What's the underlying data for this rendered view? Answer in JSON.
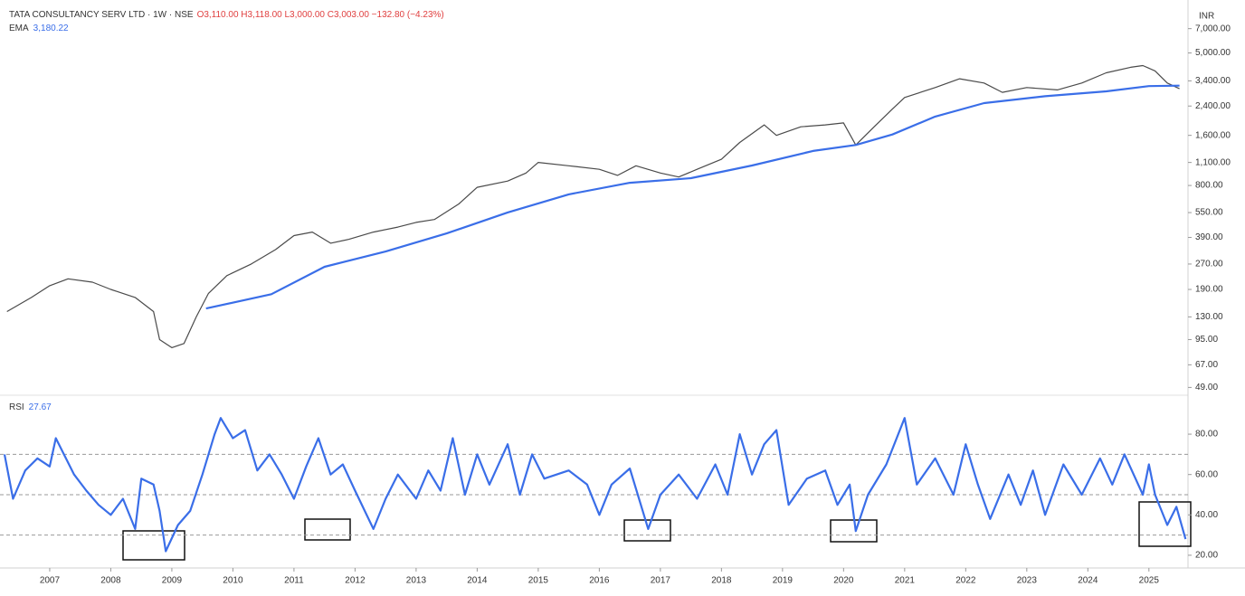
{
  "chart_data": [
    {
      "type": "line",
      "title": "TATA CONSULTANCY SERV LTD · 1W · NSE",
      "subtitle": "O3,110.00 H3,118.00 L3,000.00 C3,003.00 −132.80 (−4.23%)",
      "currency": "INR",
      "log_scale": true,
      "ylim": [
        44,
        10400
      ],
      "xlim": [
        2006.26,
        2025.64
      ],
      "yticks": [
        {
          "value": 7000,
          "label": "7,000.00"
        },
        {
          "value": 5000,
          "label": "5,000.00"
        },
        {
          "value": 3400,
          "label": "3,400.00"
        },
        {
          "value": 2400,
          "label": "2,400.00"
        },
        {
          "value": 1600,
          "label": "1,600.00"
        },
        {
          "value": 1100,
          "label": "1,100.00"
        },
        {
          "value": 800,
          "label": "800.00"
        },
        {
          "value": 550,
          "label": "550.00"
        },
        {
          "value": 390,
          "label": "390.00"
        },
        {
          "value": 270,
          "label": "270.00"
        },
        {
          "value": 190,
          "label": "190.00"
        },
        {
          "value": 130,
          "label": "130.00"
        },
        {
          "value": 95,
          "label": "95.00"
        },
        {
          "value": 67,
          "label": "67.00"
        },
        {
          "value": 49,
          "label": "49.00"
        }
      ],
      "series": [
        {
          "color": "#4a4a4a",
          "x": [
            2006.3,
            2006.7,
            2007.0,
            2007.3,
            2007.7,
            2008.0,
            2008.4,
            2008.7,
            2008.8,
            2009.0,
            2009.2,
            2009.4,
            2009.6,
            2009.9,
            2010.3,
            2010.7,
            2011.0,
            2011.3,
            2011.6,
            2011.9,
            2012.3,
            2012.7,
            2013.0,
            2013.3,
            2013.7,
            2014.0,
            2014.5,
            2014.8,
            2015.0,
            2015.5,
            2016.0,
            2016.3,
            2016.6,
            2017.0,
            2017.3,
            2017.6,
            2018.0,
            2018.3,
            2018.7,
            2018.9,
            2019.3,
            2019.7,
            2020.0,
            2020.2,
            2020.5,
            2020.8,
            2021.0,
            2021.5,
            2021.9,
            2022.3,
            2022.6,
            2023.0,
            2023.5,
            2023.9,
            2024.3,
            2024.7,
            2024.9,
            2025.1,
            2025.3,
            2025.5
          ],
          "values": [
            140,
            170,
            200,
            220,
            210,
            190,
            170,
            140,
            95,
            85,
            90,
            130,
            180,
            230,
            270,
            330,
            400,
            420,
            360,
            380,
            420,
            450,
            480,
            500,
            620,
            780,
            850,
            950,
            1100,
            1050,
            1000,
            920,
            1050,
            950,
            900,
            1000,
            1150,
            1450,
            1850,
            1600,
            1800,
            1850,
            1900,
            1400,
            1800,
            2300,
            2700,
            3100,
            3500,
            3300,
            2900,
            3100,
            3000,
            3300,
            3800,
            4100,
            4200,
            3900,
            3300,
            3050
          ]
        },
        {
          "name": "EMA",
          "value_label": "3,180.22",
          "color": "#3a6ee8",
          "x": [
            2009.56,
            2010.63,
            2011.5,
            2012.5,
            2013.5,
            2014.5,
            2015.5,
            2016.5,
            2017.5,
            2018.5,
            2019.5,
            2020.2,
            2020.8,
            2021.5,
            2022.3,
            2023.3,
            2024.3,
            2025.0,
            2025.5
          ],
          "values": [
            146,
            178,
            260,
            321,
            412,
            551,
            708,
            830,
            885,
            1055,
            1290,
            1400,
            1620,
            2075,
            2500,
            2750,
            2940,
            3160,
            3180
          ]
        }
      ]
    },
    {
      "type": "line",
      "xlim": [
        2006.26,
        2025.64
      ],
      "ylim": [
        13.7,
        99.3
      ],
      "yticks": [
        {
          "value": 80,
          "label": "80.00"
        },
        {
          "value": 60,
          "label": "60.00"
        },
        {
          "value": 40,
          "label": "40.00"
        },
        {
          "value": 20,
          "label": "20.00"
        }
      ],
      "levels": [
        70,
        50,
        30
      ],
      "xticks": [
        2007,
        2008,
        2009,
        2010,
        2011,
        2012,
        2013,
        2014,
        2015,
        2016,
        2017,
        2018,
        2019,
        2020,
        2021,
        2022,
        2023,
        2024,
        2025
      ],
      "series": [
        {
          "name": "RSI",
          "value_label": "27.67",
          "color": "#3a6ee8",
          "x": [
            2006.26,
            2006.4,
            2006.6,
            2006.8,
            2007.0,
            2007.1,
            2007.2,
            2007.4,
            2007.6,
            2007.8,
            2008.0,
            2008.2,
            2008.4,
            2008.5,
            2008.7,
            2008.8,
            2008.9,
            2009.1,
            2009.3,
            2009.5,
            2009.7,
            2009.8,
            2010.0,
            2010.2,
            2010.4,
            2010.6,
            2010.8,
            2011.0,
            2011.2,
            2011.4,
            2011.6,
            2011.8,
            2012.0,
            2012.3,
            2012.5,
            2012.7,
            2013.0,
            2013.2,
            2013.4,
            2013.6,
            2013.8,
            2014.0,
            2014.2,
            2014.5,
            2014.7,
            2014.9,
            2015.1,
            2015.5,
            2015.8,
            2016.0,
            2016.2,
            2016.5,
            2016.8,
            2017.0,
            2017.3,
            2017.6,
            2017.9,
            2018.1,
            2018.3,
            2018.5,
            2018.7,
            2018.9,
            2019.1,
            2019.4,
            2019.7,
            2019.9,
            2020.1,
            2020.2,
            2020.4,
            2020.7,
            2021.0,
            2021.2,
            2021.5,
            2021.8,
            2022.0,
            2022.2,
            2022.4,
            2022.7,
            2022.9,
            2023.1,
            2023.3,
            2023.6,
            2023.9,
            2024.2,
            2024.4,
            2024.6,
            2024.9,
            2025.0,
            2025.1,
            2025.3,
            2025.45,
            2025.6
          ],
          "values": [
            70,
            48,
            62,
            68,
            64,
            78,
            72,
            60,
            52,
            45,
            40,
            48,
            33,
            58,
            55,
            42,
            22,
            35,
            42,
            60,
            80,
            88,
            78,
            82,
            62,
            70,
            60,
            48,
            64,
            78,
            60,
            65,
            52,
            33,
            48,
            60,
            48,
            62,
            52,
            78,
            50,
            70,
            55,
            75,
            50,
            70,
            58,
            62,
            55,
            40,
            55,
            63,
            33,
            50,
            60,
            48,
            65,
            50,
            80,
            60,
            75,
            82,
            45,
            58,
            62,
            45,
            55,
            32,
            50,
            65,
            88,
            55,
            68,
            50,
            75,
            55,
            38,
            60,
            45,
            62,
            40,
            65,
            50,
            68,
            55,
            70,
            50,
            65,
            50,
            35,
            44,
            28
          ]
        }
      ]
    }
  ]
}
